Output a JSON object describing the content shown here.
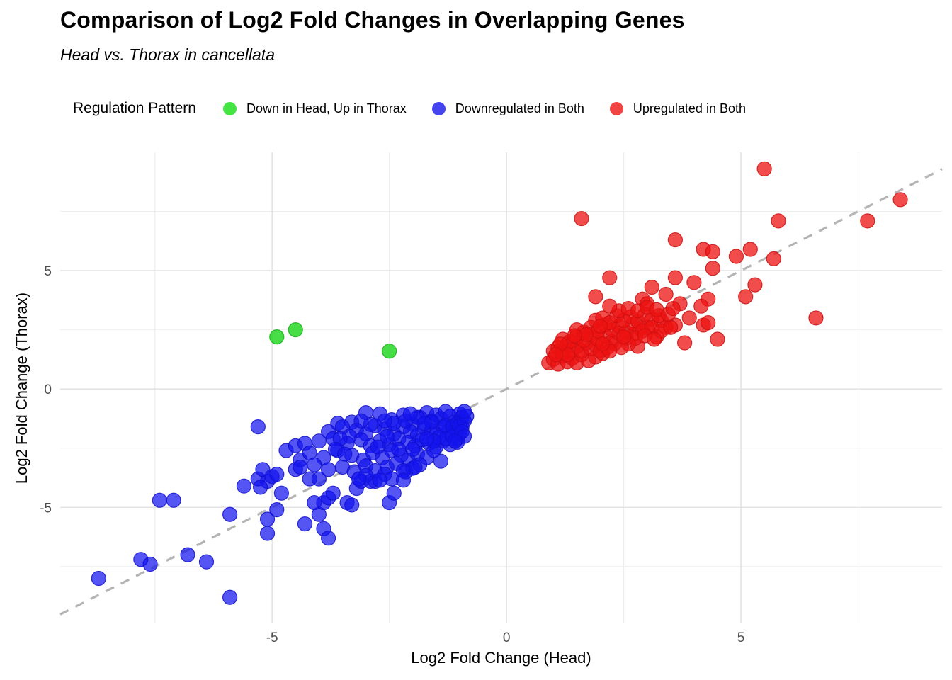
{
  "title": "Comparison of Log2 Fold Changes in Overlapping Genes",
  "subtitle": "Head vs. Thorax in cancellata",
  "legend": {
    "title": "Regulation Pattern",
    "items": [
      {
        "label": "Down in Head, Up in Thorax",
        "color": "#45e445"
      },
      {
        "label": "Downregulated in Both",
        "color": "#4545f0"
      },
      {
        "label": "Upregulated in Both",
        "color": "#f34444"
      }
    ]
  },
  "chart_data": {
    "type": "scatter",
    "title": "Comparison of Log2 Fold Changes in Overlapping Genes",
    "subtitle": "Head vs. Thorax in cancellata",
    "xlabel": "Log2 Fold Change (Head)",
    "ylabel": "Log2 Fold Change (Thorax)",
    "xlim": [
      -9.52,
      9.29
    ],
    "ylim": [
      -9.9,
      10.0
    ],
    "x_ticks": [
      -5,
      0,
      5
    ],
    "y_ticks": [
      -5,
      0,
      5
    ],
    "x_minor_ticks": [
      -7.5,
      -2.5,
      2.5,
      7.5
    ],
    "y_minor_ticks": [
      -7.5,
      -2.5,
      2.5,
      7.5
    ],
    "grid": true,
    "legend_position": "top",
    "point_radius": 10,
    "reference_line": {
      "type": "identity y=x",
      "style": "dashed",
      "color": "#b4b4b4",
      "width": 3.2
    },
    "colors": {
      "major_grid": "#e3e3e3",
      "minor_grid": "#eeeeee",
      "tick_text": "#4d4d4d"
    },
    "series": [
      {
        "name": "Down in Head, Up in Thorax",
        "fill": "#19d519",
        "stroke": "#15b015",
        "opacity": 0.8,
        "points": [
          [
            -4.9,
            2.2
          ],
          [
            -4.5,
            2.5
          ],
          [
            -2.5,
            1.6
          ]
        ]
      },
      {
        "name": "Downregulated in Both",
        "fill": "#1414ee",
        "stroke": "#1111cc",
        "opacity": 0.72,
        "points": [
          [
            -8.7,
            -8.0
          ],
          [
            -7.8,
            -7.2
          ],
          [
            -7.6,
            -7.4
          ],
          [
            -6.8,
            -7.0
          ],
          [
            -6.4,
            -7.3
          ],
          [
            -5.9,
            -8.8
          ],
          [
            -5.9,
            -5.3
          ],
          [
            -7.4,
            -4.7
          ],
          [
            -7.1,
            -4.7
          ],
          [
            -5.3,
            -1.6
          ],
          [
            -5.1,
            -5.5
          ],
          [
            -5.1,
            -6.1
          ],
          [
            -4.9,
            -5.1
          ],
          [
            -4.3,
            -5.7
          ],
          [
            -4.0,
            -5.3
          ],
          [
            -3.9,
            -5.9
          ],
          [
            -3.8,
            -6.3
          ],
          [
            -2.5,
            -4.8
          ],
          [
            -3.4,
            -4.8
          ],
          [
            -3.3,
            -4.9
          ],
          [
            -4.1,
            -4.8
          ],
          [
            -3.9,
            -4.8
          ],
          [
            -3.8,
            -4.6
          ],
          [
            -3.7,
            -4.4
          ],
          [
            -3.2,
            -4.2
          ],
          [
            -3.1,
            -3.9
          ],
          [
            -2.9,
            -3.9
          ],
          [
            -2.8,
            -3.9
          ],
          [
            -2.4,
            -4.4
          ],
          [
            -5.6,
            -4.1
          ],
          [
            -5.3,
            -3.8
          ],
          [
            -5.2,
            -3.4
          ],
          [
            -5.1,
            -3.9
          ],
          [
            -5.0,
            -3.7
          ],
          [
            -4.9,
            -3.6
          ],
          [
            -4.8,
            -4.4
          ],
          [
            -4.7,
            -2.6
          ],
          [
            -4.5,
            -2.4
          ],
          [
            -4.3,
            -2.3
          ],
          [
            -4.4,
            -3.0
          ],
          [
            -4.5,
            -3.4
          ],
          [
            -4.2,
            -3.8
          ],
          [
            -4.0,
            -3.8
          ],
          [
            -5.25,
            -4.15
          ],
          [
            -3.6,
            -1.45
          ],
          [
            -3.3,
            -1.4
          ],
          [
            -3.0,
            -1.0
          ],
          [
            -2.7,
            -1.05
          ],
          [
            -2.45,
            -1.3
          ],
          [
            -2.2,
            -1.1
          ],
          [
            -2.0,
            -1.5
          ],
          [
            -1.85,
            -1.2
          ],
          [
            -1.7,
            -1.0
          ],
          [
            -1.6,
            -1.35
          ],
          [
            -1.5,
            -1.1
          ],
          [
            -1.4,
            -1.25
          ],
          [
            -1.3,
            -0.95
          ],
          [
            -1.2,
            -1.15
          ],
          [
            -1.1,
            -1.4
          ],
          [
            -1.0,
            -1.05
          ],
          [
            -0.95,
            -1.2
          ],
          [
            -3.8,
            -1.8
          ],
          [
            -3.5,
            -1.6
          ],
          [
            -3.2,
            -1.75
          ],
          [
            -3.0,
            -1.9
          ],
          [
            -2.8,
            -1.55
          ],
          [
            -2.6,
            -1.7
          ],
          [
            -2.4,
            -1.9
          ],
          [
            -2.2,
            -1.6
          ],
          [
            -2.05,
            -1.8
          ],
          [
            -1.9,
            -1.95
          ],
          [
            -1.75,
            -1.65
          ],
          [
            -1.6,
            -1.75
          ],
          [
            -1.5,
            -1.9
          ],
          [
            -1.35,
            -1.6
          ],
          [
            -1.25,
            -1.8
          ],
          [
            -1.1,
            -1.7
          ],
          [
            -1.0,
            -1.9
          ],
          [
            -4.0,
            -2.2
          ],
          [
            -3.7,
            -2.1
          ],
          [
            -3.4,
            -2.3
          ],
          [
            -3.1,
            -2.15
          ],
          [
            -2.9,
            -2.4
          ],
          [
            -2.7,
            -2.2
          ],
          [
            -2.5,
            -2.35
          ],
          [
            -2.3,
            -2.1
          ],
          [
            -2.1,
            -2.25
          ],
          [
            -1.95,
            -2.4
          ],
          [
            -1.8,
            -2.15
          ],
          [
            -1.65,
            -2.3
          ],
          [
            -1.5,
            -2.45
          ],
          [
            -1.35,
            -2.2
          ],
          [
            -1.2,
            -2.35
          ],
          [
            -1.05,
            -2.1
          ],
          [
            -4.2,
            -2.7
          ],
          [
            -3.9,
            -2.9
          ],
          [
            -3.6,
            -2.6
          ],
          [
            -3.3,
            -2.8
          ],
          [
            -3.05,
            -3.0
          ],
          [
            -2.85,
            -2.7
          ],
          [
            -2.65,
            -2.9
          ],
          [
            -2.45,
            -2.6
          ],
          [
            -2.25,
            -2.8
          ],
          [
            -2.1,
            -3.0
          ],
          [
            -1.9,
            -2.75
          ],
          [
            -1.7,
            -2.9
          ],
          [
            -1.55,
            -2.6
          ],
          [
            -1.4,
            -3.05
          ],
          [
            -4.4,
            -3.3
          ],
          [
            -4.1,
            -3.2
          ],
          [
            -3.8,
            -3.4
          ],
          [
            -3.5,
            -3.3
          ],
          [
            -3.25,
            -3.5
          ],
          [
            -3.0,
            -3.25
          ],
          [
            -2.8,
            -3.45
          ],
          [
            -2.55,
            -3.3
          ],
          [
            -2.35,
            -3.15
          ],
          [
            -2.15,
            -3.5
          ],
          [
            -2.0,
            -3.35
          ],
          [
            -1.85,
            -3.2
          ],
          [
            -1.3,
            -1.55
          ],
          [
            -1.15,
            -1.6
          ],
          [
            -1.05,
            -1.45
          ],
          [
            -0.95,
            -1.6
          ],
          [
            -1.45,
            -2.05
          ],
          [
            -1.3,
            -2.1
          ],
          [
            -1.15,
            -2.0
          ],
          [
            -1.6,
            -1.4
          ],
          [
            -2.4,
            -1.45
          ],
          [
            -2.6,
            -1.35
          ],
          [
            -2.9,
            -1.5
          ],
          [
            -3.1,
            -1.35
          ],
          [
            -2.3,
            -2.55
          ],
          [
            -2.0,
            -2.55
          ],
          [
            -2.55,
            -2.0
          ],
          [
            -2.75,
            -2.45
          ],
          [
            -3.35,
            -2.0
          ],
          [
            -3.55,
            -2.1
          ],
          [
            -3.65,
            -2.55
          ],
          [
            -3.45,
            -2.75
          ],
          [
            -2.15,
            -1.35
          ],
          [
            -1.9,
            -1.2
          ],
          [
            -1.75,
            -1.45
          ],
          [
            -2.05,
            -1.05
          ],
          [
            -1.55,
            -2.2
          ],
          [
            -1.7,
            -2.1
          ],
          [
            -1.95,
            -3.3
          ],
          [
            -2.2,
            -3.45
          ],
          [
            -2.6,
            -3.6
          ],
          [
            -3.0,
            -3.65
          ],
          [
            -2.45,
            -3.8
          ],
          [
            -2.7,
            -3.85
          ],
          [
            -2.2,
            -3.85
          ],
          [
            -3.15,
            -3.8
          ],
          [
            -1.0,
            -1.55
          ],
          [
            -0.9,
            -1.35
          ],
          [
            -0.95,
            -1.8
          ],
          [
            -1.05,
            -2.25
          ],
          [
            -0.9,
            -2.0
          ],
          [
            -1.1,
            -2.2
          ],
          [
            -0.85,
            -1.15
          ],
          [
            -0.9,
            -0.95
          ]
        ]
      },
      {
        "name": "Upregulated in Both",
        "fill": "#ee1111",
        "stroke": "#cc1111",
        "opacity": 0.75,
        "points": [
          [
            1.6,
            7.2
          ],
          [
            3.6,
            6.3
          ],
          [
            4.2,
            5.9
          ],
          [
            4.4,
            5.8
          ],
          [
            4.4,
            5.1
          ],
          [
            4.9,
            5.6
          ],
          [
            5.2,
            5.9
          ],
          [
            5.7,
            5.5
          ],
          [
            5.3,
            4.4
          ],
          [
            5.1,
            3.9
          ],
          [
            6.6,
            3.0
          ],
          [
            5.5,
            9.3
          ],
          [
            8.4,
            8.0
          ],
          [
            5.8,
            7.1
          ],
          [
            7.7,
            7.1
          ],
          [
            2.2,
            4.7
          ],
          [
            3.6,
            4.7
          ],
          [
            4.0,
            4.5
          ],
          [
            3.1,
            4.3
          ],
          [
            3.4,
            4.0
          ],
          [
            1.9,
            3.9
          ],
          [
            2.9,
            3.8
          ],
          [
            4.3,
            3.8
          ],
          [
            3.7,
            3.6
          ],
          [
            4.15,
            3.5
          ],
          [
            3.9,
            3.0
          ],
          [
            4.2,
            2.7
          ],
          [
            4.5,
            2.1
          ],
          [
            3.8,
            1.95
          ],
          [
            2.8,
            1.8
          ],
          [
            3.2,
            2.2
          ],
          [
            3.4,
            2.6
          ],
          [
            3.6,
            2.7
          ],
          [
            3.0,
            3.6
          ],
          [
            3.3,
            2.9
          ],
          [
            4.3,
            2.8
          ],
          [
            0.9,
            1.1
          ],
          [
            1.0,
            1.25
          ],
          [
            1.1,
            1.05
          ],
          [
            1.2,
            1.4
          ],
          [
            1.3,
            1.15
          ],
          [
            1.4,
            1.3
          ],
          [
            1.5,
            1.1
          ],
          [
            1.6,
            1.45
          ],
          [
            1.75,
            1.2
          ],
          [
            1.9,
            1.35
          ],
          [
            2.05,
            1.5
          ],
          [
            1.0,
            1.6
          ],
          [
            1.1,
            1.75
          ],
          [
            1.2,
            1.55
          ],
          [
            1.3,
            1.9
          ],
          [
            1.4,
            1.65
          ],
          [
            1.5,
            1.8
          ],
          [
            1.6,
            1.6
          ],
          [
            1.7,
            1.95
          ],
          [
            1.8,
            1.7
          ],
          [
            1.9,
            1.85
          ],
          [
            2.0,
            1.6
          ],
          [
            2.15,
            1.75
          ],
          [
            2.3,
            1.9
          ],
          [
            1.2,
            2.1
          ],
          [
            1.35,
            2.0
          ],
          [
            1.5,
            2.2
          ],
          [
            1.65,
            2.05
          ],
          [
            1.8,
            2.3
          ],
          [
            1.95,
            2.1
          ],
          [
            2.1,
            2.25
          ],
          [
            2.25,
            2.0
          ],
          [
            2.4,
            2.35
          ],
          [
            2.55,
            2.15
          ],
          [
            2.7,
            2.3
          ],
          [
            1.5,
            2.5
          ],
          [
            1.65,
            2.4
          ],
          [
            1.8,
            2.6
          ],
          [
            1.95,
            2.45
          ],
          [
            2.1,
            2.7
          ],
          [
            2.25,
            2.5
          ],
          [
            2.4,
            2.65
          ],
          [
            2.55,
            2.4
          ],
          [
            2.7,
            2.75
          ],
          [
            2.85,
            2.55
          ],
          [
            3.0,
            2.6
          ],
          [
            1.9,
            2.9
          ],
          [
            2.05,
            3.0
          ],
          [
            2.2,
            2.8
          ],
          [
            2.35,
            3.1
          ],
          [
            2.5,
            2.9
          ],
          [
            2.65,
            3.05
          ],
          [
            2.8,
            2.85
          ],
          [
            2.95,
            3.15
          ],
          [
            3.1,
            2.95
          ],
          [
            3.25,
            3.1
          ],
          [
            2.4,
            3.3
          ],
          [
            2.6,
            3.4
          ],
          [
            2.8,
            3.3
          ],
          [
            3.0,
            3.45
          ],
          [
            3.2,
            3.35
          ],
          [
            2.2,
            3.5
          ],
          [
            2.0,
            2.65
          ],
          [
            1.7,
            2.3
          ],
          [
            1.45,
            2.25
          ],
          [
            1.3,
            1.45
          ],
          [
            2.9,
            2.45
          ],
          [
            3.1,
            2.6
          ],
          [
            3.3,
            2.45
          ],
          [
            3.5,
            2.6
          ],
          [
            2.75,
            2.15
          ],
          [
            2.95,
            2.25
          ],
          [
            3.15,
            2.1
          ],
          [
            2.6,
            1.9
          ],
          [
            2.45,
            1.75
          ],
          [
            2.2,
            1.6
          ],
          [
            2.05,
            1.9
          ],
          [
            3.45,
            3.15
          ],
          [
            3.55,
            3.4
          ],
          [
            2.5,
            2.2
          ],
          [
            1.15,
            1.9
          ],
          [
            1.05,
            1.45
          ]
        ]
      }
    ]
  }
}
